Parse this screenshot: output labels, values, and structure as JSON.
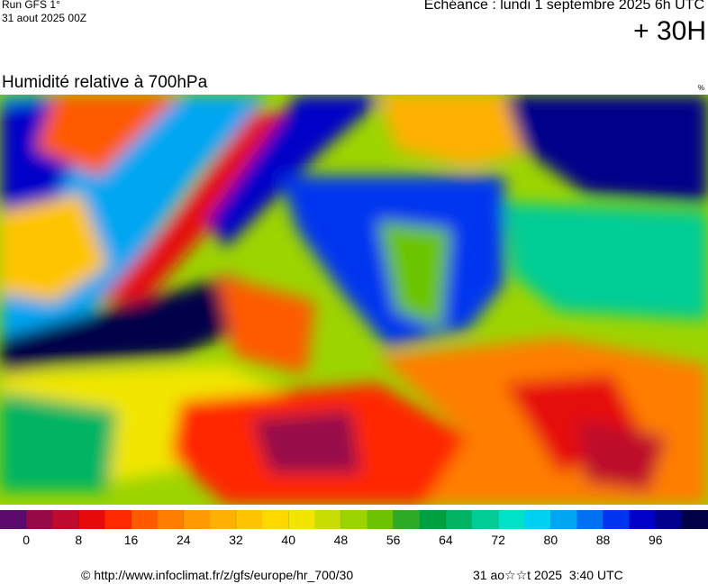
{
  "header": {
    "run": "Run GFS 1°",
    "date": "31 aout 2025 00Z",
    "echeance": "Echéance : lundi 1 septembre 2025 6h UTC",
    "horizon": "+ 30H"
  },
  "map": {
    "title": "Humidité relative à 700hPa",
    "unit": "%"
  },
  "colorbar": {
    "range": [
      -4,
      104
    ],
    "ticks": [
      0,
      8,
      16,
      24,
      32,
      40,
      48,
      56,
      64,
      72,
      80,
      88,
      96
    ],
    "colors": [
      "#5c0a6e",
      "#960a48",
      "#be0a2c",
      "#e60a0a",
      "#ff2800",
      "#ff5a00",
      "#ff7e00",
      "#ff9a00",
      "#ffb000",
      "#ffc400",
      "#ffd800",
      "#f2e600",
      "#c8de00",
      "#9cd400",
      "#6cc400",
      "#2eac28",
      "#00a040",
      "#00b464",
      "#00cc96",
      "#00e2c8",
      "#00d0f2",
      "#00a6f2",
      "#0070f0",
      "#0034f0",
      "#0000c8",
      "#00008a",
      "#000048"
    ]
  },
  "footer": {
    "source": "© http://www.infoclimat.fr/z/gfs/europe/hr_700/30",
    "generated": "31 ao☆☆t 2025  3:40 UTC"
  }
}
